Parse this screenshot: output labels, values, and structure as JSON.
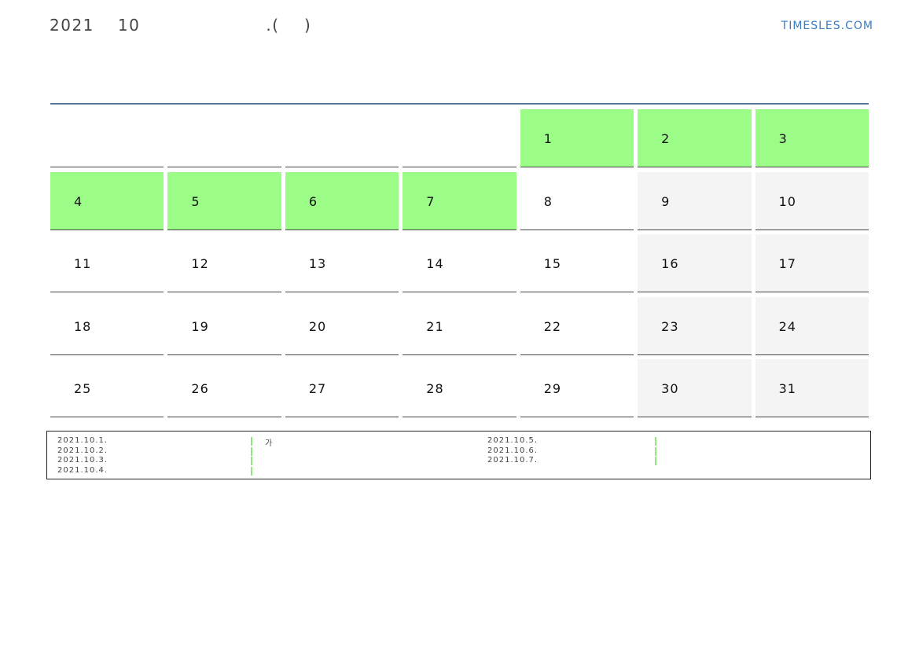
{
  "header": {
    "year": "2021",
    "month": "10",
    "suffix": ".(    )",
    "logo": "TIMESLES.COM"
  },
  "colors": {
    "highlight": "#9cfc88",
    "weekend": "#f4f4f4",
    "rule": "#5a7498",
    "logo": "#3a7cc4"
  },
  "calendar": {
    "weeks": [
      [
        null,
        null,
        null,
        null,
        {
          "day": "1",
          "hl": true
        },
        {
          "day": "2",
          "hl": true
        },
        {
          "day": "3",
          "hl": true
        }
      ],
      [
        {
          "day": "4",
          "hl": true
        },
        {
          "day": "5",
          "hl": true
        },
        {
          "day": "6",
          "hl": true
        },
        {
          "day": "7",
          "hl": true
        },
        {
          "day": "8"
        },
        {
          "day": "9"
        },
        {
          "day": "10"
        }
      ],
      [
        {
          "day": "11"
        },
        {
          "day": "12"
        },
        {
          "day": "13"
        },
        {
          "day": "14"
        },
        {
          "day": "15"
        },
        {
          "day": "16"
        },
        {
          "day": "17"
        }
      ],
      [
        {
          "day": "18"
        },
        {
          "day": "19"
        },
        {
          "day": "20"
        },
        {
          "day": "21"
        },
        {
          "day": "22"
        },
        {
          "day": "23"
        },
        {
          "day": "24"
        }
      ],
      [
        {
          "day": "25"
        },
        {
          "day": "26"
        },
        {
          "day": "27"
        },
        {
          "day": "28"
        },
        {
          "day": "29"
        },
        {
          "day": "30"
        },
        {
          "day": "31"
        }
      ]
    ]
  },
  "legend": {
    "left": [
      "2021.10.1.",
      "2021.10.2.",
      "2021.10.3.",
      "2021.10.4."
    ],
    "right": [
      "2021.10.5.",
      "2021.10.6.",
      "2021.10.7."
    ],
    "note": "가"
  }
}
